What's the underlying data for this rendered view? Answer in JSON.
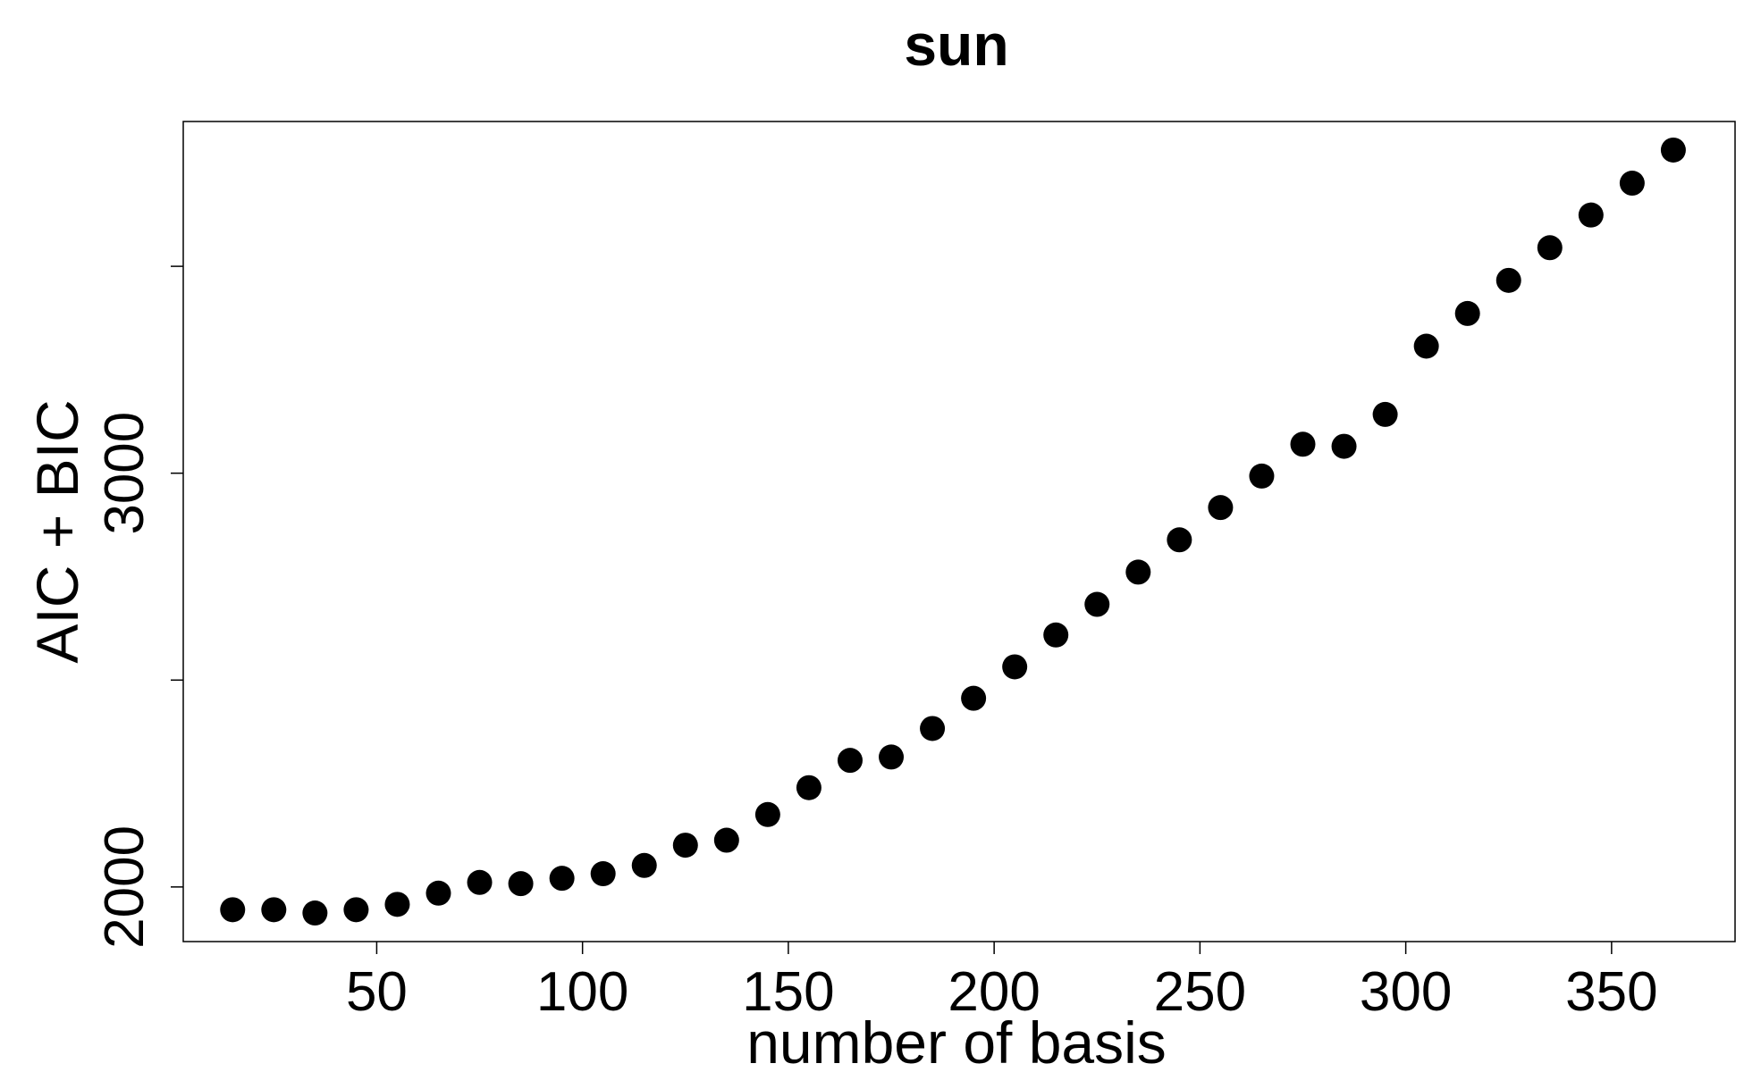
{
  "chart_data": {
    "type": "scatter",
    "title": "sun",
    "xlabel": "number of basis",
    "ylabel": "AIC + BIC",
    "xlim": [
      3,
      380
    ],
    "ylim": [
      1868,
      3850
    ],
    "x_ticks": [
      50,
      100,
      150,
      200,
      250,
      300,
      350
    ],
    "y_ticks": [
      2000,
      2500,
      3000,
      3500
    ],
    "y_tick_labels": [
      "2000",
      "",
      "3000",
      ""
    ],
    "grid": false,
    "legend": "none",
    "marker_color": "#000000",
    "x": [
      15,
      25,
      35,
      45,
      55,
      65,
      75,
      85,
      95,
      105,
      115,
      125,
      135,
      145,
      155,
      165,
      175,
      185,
      195,
      205,
      215,
      225,
      235,
      245,
      255,
      265,
      275,
      285,
      295,
      305,
      315,
      325,
      335,
      345,
      355,
      365
    ],
    "y": [
      1945,
      1945,
      1937,
      1945,
      1958,
      1985,
      2011,
      2008,
      2021,
      2032,
      2052,
      2101,
      2113,
      2175,
      2240,
      2306,
      2314,
      2383,
      2456,
      2532,
      2609,
      2683,
      2761,
      2839,
      2917,
      2993,
      3070,
      3065,
      3142,
      3307,
      3386,
      3466,
      3545,
      3624,
      3701,
      3781
    ]
  }
}
